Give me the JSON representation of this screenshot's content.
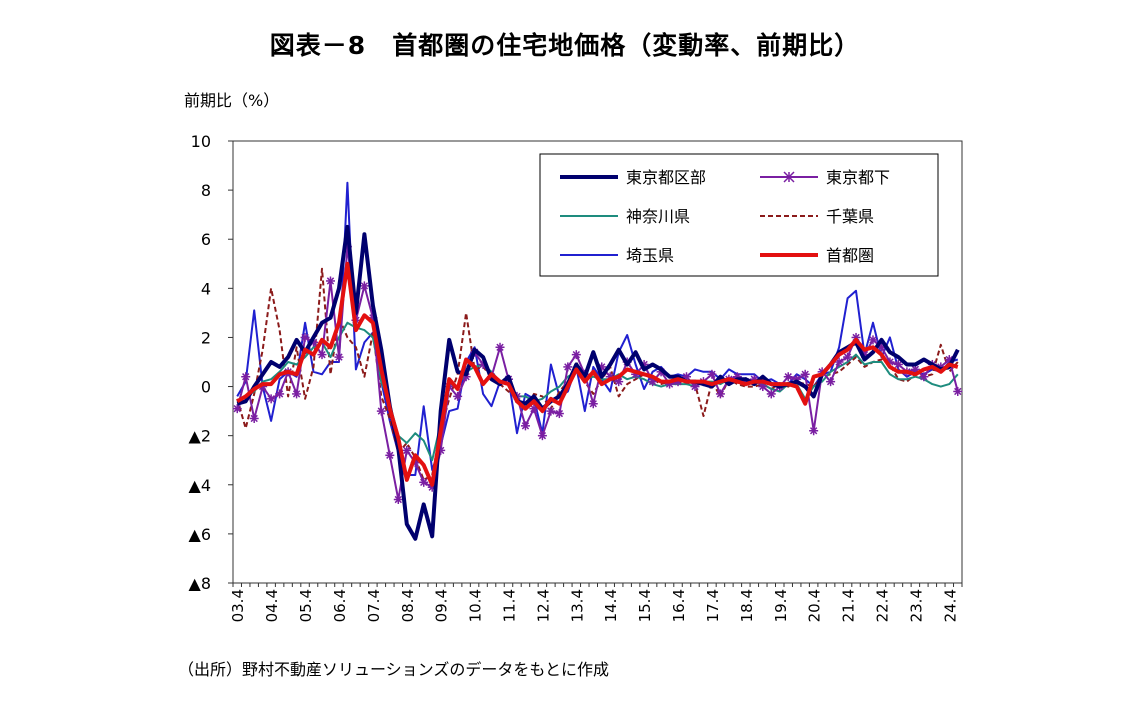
{
  "chart_data": {
    "type": "line",
    "title": "図表－8　首都圏の住宅地価格（変動率、前期比）",
    "ylabel": "前期比（%）",
    "xlabel": "",
    "source": "（出所）野村不動産ソリューションズのデータをもとに作成",
    "ylim": [
      -8,
      10
    ],
    "y_ticks": [
      10,
      8,
      6,
      4,
      2,
      0,
      -2,
      -4,
      -6,
      -8
    ],
    "y_tick_labels": [
      "10",
      "8",
      "6",
      "4",
      "2",
      "0",
      "▲2",
      "▲4",
      "▲6",
      "▲8"
    ],
    "x_tick_labels": [
      "03.4",
      "04.4",
      "05.4",
      "06.4",
      "07.4",
      "08.4",
      "09.4",
      "10.4",
      "11.4",
      "12.4",
      "13.4",
      "14.4",
      "15.4",
      "16.4",
      "17.4",
      "18.4",
      "19.4",
      "20.4",
      "21.4",
      "22.4",
      "23.4",
      "24.4"
    ],
    "grid": false,
    "legend_position": "top-right",
    "x_count": 86,
    "series": [
      {
        "name": "東京都区部",
        "color": "#00006e",
        "width": 4,
        "style": "solid",
        "values": [
          -0.7,
          -0.6,
          0.0,
          0.5,
          1.0,
          0.8,
          1.2,
          1.9,
          1.4,
          2.0,
          2.6,
          2.8,
          4.0,
          6.5,
          3.0,
          6.2,
          3.3,
          1.5,
          -0.8,
          -2.5,
          -5.6,
          -6.2,
          -4.8,
          -6.1,
          -1.0,
          1.9,
          0.6,
          0.5,
          1.5,
          1.2,
          0.3,
          0.1,
          0.4,
          -0.6,
          -0.7,
          -0.4,
          -0.9,
          -0.6,
          -0.4,
          0.1,
          0.9,
          0.4,
          1.4,
          0.4,
          0.9,
          1.5,
          0.9,
          1.4,
          0.7,
          0.9,
          0.7,
          0.4,
          0.4,
          0.2,
          0.2,
          0.1,
          0.0,
          0.4,
          0.1,
          0.3,
          0.3,
          0.1,
          0.4,
          0.1,
          0.0,
          0.1,
          0.2,
          0.0,
          -0.4,
          0.5,
          0.9,
          1.4,
          1.6,
          1.8,
          1.1,
          1.4,
          1.9,
          1.4,
          1.2,
          0.9,
          0.9,
          1.1,
          0.9,
          0.7,
          0.8,
          1.5
        ]
      },
      {
        "name": "東京都下",
        "color": "#7a1fa2",
        "width": 2,
        "style": "solid",
        "marker": "star",
        "values": [
          -0.9,
          0.4,
          -1.3,
          0.0,
          -0.5,
          -0.3,
          0.6,
          -0.3,
          2.0,
          1.8,
          1.3,
          4.3,
          1.2,
          5.7,
          2.7,
          4.1,
          2.8,
          -1.0,
          -2.8,
          -4.6,
          -2.6,
          -3.1,
          -3.9,
          -4.1,
          -2.6,
          0.0,
          -0.4,
          0.4,
          1.4,
          0.9,
          0.4,
          1.6,
          0.3,
          -0.4,
          -1.6,
          -0.9,
          -2.0,
          -1.0,
          -1.1,
          0.8,
          1.3,
          0.5,
          -0.7,
          0.8,
          0.4,
          0.2,
          1.0,
          0.5,
          0.9,
          0.2,
          0.6,
          0.1,
          0.2,
          0.4,
          0.0,
          0.2,
          0.5,
          -0.3,
          0.3,
          0.4,
          0.2,
          0.3,
          0.0,
          -0.3,
          0.0,
          0.4,
          0.3,
          0.5,
          -1.8,
          0.6,
          0.2,
          1.0,
          1.2,
          2.0,
          1.3,
          1.9,
          1.6,
          1.0,
          0.9,
          0.6,
          0.7,
          0.4,
          0.9,
          0.8,
          1.1,
          -0.2
        ]
      },
      {
        "name": "神奈川県",
        "color": "#1e8c7e",
        "width": 2,
        "style": "solid",
        "values": [
          -0.6,
          -0.4,
          -0.2,
          0.2,
          0.3,
          0.6,
          1.0,
          0.9,
          1.2,
          1.6,
          1.8,
          1.2,
          2.0,
          2.6,
          2.4,
          2.3,
          2.0,
          0.2,
          -0.7,
          -2.0,
          -2.3,
          -1.9,
          -2.2,
          -3.0,
          -1.5,
          0.1,
          0.0,
          0.6,
          0.8,
          0.9,
          0.6,
          0.2,
          0.1,
          -0.4,
          -0.4,
          -0.6,
          -0.5,
          -0.2,
          0.0,
          0.4,
          0.6,
          0.3,
          0.4,
          0.3,
          0.3,
          0.5,
          0.3,
          0.4,
          0.3,
          0.1,
          0.0,
          0.1,
          0.1,
          0.1,
          0.0,
          0.2,
          0.2,
          0.1,
          0.3,
          0.2,
          0.1,
          0.2,
          0.1,
          -0.1,
          -0.2,
          0.1,
          0.1,
          -0.5,
          0.0,
          0.2,
          0.6,
          0.8,
          1.0,
          1.3,
          0.9,
          1.0,
          1.0,
          0.5,
          0.3,
          0.3,
          0.4,
          0.3,
          0.1,
          0.0,
          0.1,
          0.5
        ]
      },
      {
        "name": "千葉県",
        "color": "#8b1a1a",
        "width": 2,
        "style": "dashed",
        "values": [
          -0.5,
          -1.7,
          -0.3,
          1.5,
          4.0,
          2.3,
          -0.4,
          1.6,
          -0.5,
          0.8,
          4.8,
          0.5,
          2.8,
          2.0,
          1.6,
          0.4,
          2.2,
          -0.4,
          -1.3,
          -2.7,
          -2.3,
          -2.9,
          -3.8,
          -3.6,
          -1.8,
          -0.5,
          0.5,
          3.0,
          0.7,
          0.8,
          0.4,
          0.1,
          -0.2,
          -0.4,
          -1.0,
          -0.3,
          -0.4,
          -0.9,
          -0.2,
          0.2,
          1.0,
          0.2,
          -0.3,
          0.3,
          0.8,
          -0.4,
          0.1,
          0.3,
          0.5,
          0.3,
          0.1,
          0.2,
          0.2,
          0.1,
          0.1,
          -1.2,
          0.2,
          -0.4,
          0.3,
          0.1,
          0.0,
          0.0,
          0.1,
          -0.1,
          0.1,
          0.0,
          0.2,
          0.1,
          0.0,
          0.4,
          0.5,
          0.6,
          0.9,
          1.2,
          0.8,
          1.0,
          1.1,
          0.9,
          0.3,
          0.2,
          0.5,
          0.4,
          0.5,
          1.7,
          0.6,
          1.0
        ]
      },
      {
        "name": "埼玉県",
        "color": "#2020d0",
        "width": 2,
        "style": "solid",
        "values": [
          -0.4,
          0.2,
          3.1,
          0.0,
          -1.4,
          0.3,
          0.6,
          0.4,
          2.6,
          0.6,
          0.5,
          1.0,
          1.0,
          8.3,
          0.7,
          1.8,
          2.2,
          0.2,
          -1.4,
          -2.7,
          -3.6,
          -3.6,
          -0.8,
          -3.4,
          -2.4,
          -1.0,
          -0.9,
          1.0,
          1.6,
          -0.3,
          -0.8,
          0.2,
          0.3,
          -1.9,
          -0.3,
          -0.5,
          -1.9,
          0.9,
          -0.4,
          -0.2,
          0.8,
          -1.0,
          0.8,
          0.3,
          -0.2,
          1.4,
          2.1,
          0.9,
          -0.1,
          0.6,
          0.8,
          0.4,
          0.5,
          0.4,
          0.7,
          0.6,
          0.6,
          0.3,
          0.7,
          0.5,
          0.5,
          0.5,
          0.2,
          0.3,
          0.1,
          0.1,
          0.5,
          0.3,
          0.0,
          0.5,
          0.6,
          1.6,
          3.6,
          3.9,
          1.3,
          2.6,
          1.2,
          2.0,
          0.7,
          0.4,
          0.6,
          0.5,
          0.7,
          0.6,
          1.0,
          1.1
        ]
      },
      {
        "name": "首都圏",
        "color": "#e31010",
        "width": 4,
        "style": "solid",
        "values": [
          -0.6,
          -0.4,
          -0.1,
          0.1,
          0.1,
          0.5,
          0.6,
          0.5,
          1.5,
          1.3,
          1.9,
          1.6,
          2.6,
          5.0,
          2.3,
          2.9,
          2.6,
          0.7,
          -0.9,
          -2.1,
          -3.8,
          -2.8,
          -3.2,
          -4.0,
          -1.8,
          0.3,
          -0.1,
          1.1,
          0.8,
          0.1,
          0.5,
          0.2,
          0.1,
          -0.6,
          -0.9,
          -0.6,
          -1.0,
          -0.5,
          -0.7,
          0.0,
          0.7,
          0.2,
          0.6,
          0.1,
          0.3,
          0.4,
          0.7,
          0.6,
          0.5,
          0.4,
          0.2,
          0.2,
          0.3,
          0.2,
          0.2,
          0.2,
          0.1,
          0.2,
          0.3,
          0.2,
          0.1,
          0.2,
          0.2,
          0.1,
          0.1,
          0.1,
          0.0,
          -0.7,
          0.4,
          0.5,
          0.9,
          1.3,
          1.5,
          1.9,
          1.5,
          1.6,
          1.3,
          0.8,
          0.6,
          0.6,
          0.5,
          0.7,
          0.8,
          0.6,
          0.9,
          0.8
        ]
      }
    ]
  }
}
